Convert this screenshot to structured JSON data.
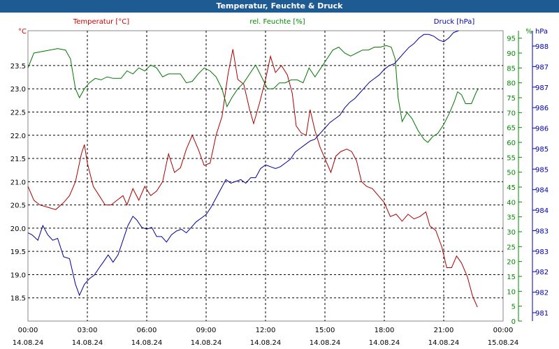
{
  "window_title": "Temperatur, Feuchte & Druck",
  "chart_data": {
    "type": "line",
    "title": "Temperatur, Feuchte & Druck",
    "x_axis": {
      "labels": [
        {
          "time": "00:00",
          "date": "14.08.24"
        },
        {
          "time": "03:00",
          "date": "14.08.24"
        },
        {
          "time": "06:00",
          "date": "14.08.24"
        },
        {
          "time": "09:00",
          "date": "14.08.24"
        },
        {
          "time": "12:00",
          "date": "14.08.24"
        },
        {
          "time": "15:00",
          "date": "14.08.24"
        },
        {
          "time": "18:00",
          "date": "14.08.24"
        },
        {
          "time": "21:00",
          "date": "14.08.24"
        },
        {
          "time": "00:00",
          "date": "15.08.24"
        }
      ],
      "range_hours": [
        0,
        24
      ]
    },
    "grid": true,
    "axes": {
      "temperature": {
        "unit": "°C",
        "ylim": [
          18.0,
          24.25
        ],
        "ticks": [
          "18.5",
          "19.0",
          "19.5",
          "20.0",
          "20.5",
          "21.0",
          "21.5",
          "22.0",
          "22.5",
          "23.0",
          "23.5"
        ],
        "color": "#cc0000"
      },
      "humidity": {
        "unit": "%",
        "ylim": [
          0,
          97.5
        ],
        "ticks": [
          "0",
          "5",
          "10",
          "15",
          "20",
          "25",
          "30",
          "35",
          "40",
          "45",
          "50",
          "55",
          "60",
          "65",
          "70",
          "75",
          "80",
          "85",
          "90",
          "95"
        ],
        "color": "#008800"
      },
      "pressure": {
        "unit": "hPa",
        "ylim": [
          980.6,
          988.5
        ],
        "ticks": [
          "981",
          "982",
          "982",
          "983",
          "983",
          "984",
          "984",
          "985",
          "985",
          "986",
          "986",
          "987",
          "987",
          "988"
        ],
        "color": "#0000aa"
      }
    },
    "series": [
      {
        "name": "Temperatur [°C]",
        "axis": "temperature",
        "color": "#aa0000",
        "points": [
          [
            0,
            20.9
          ],
          [
            0.3,
            20.6
          ],
          [
            0.6,
            20.5
          ],
          [
            1.0,
            20.45
          ],
          [
            1.4,
            20.4
          ],
          [
            1.8,
            20.55
          ],
          [
            2.1,
            20.7
          ],
          [
            2.4,
            21.0
          ],
          [
            2.7,
            21.6
          ],
          [
            2.85,
            21.8
          ],
          [
            3.0,
            21.4
          ],
          [
            3.3,
            20.9
          ],
          [
            3.6,
            20.7
          ],
          [
            3.9,
            20.5
          ],
          [
            4.2,
            20.5
          ],
          [
            4.5,
            20.6
          ],
          [
            4.8,
            20.7
          ],
          [
            5.0,
            20.5
          ],
          [
            5.3,
            20.85
          ],
          [
            5.6,
            20.6
          ],
          [
            5.9,
            20.9
          ],
          [
            6.2,
            20.7
          ],
          [
            6.5,
            20.8
          ],
          [
            6.8,
            21.0
          ],
          [
            7.1,
            21.6
          ],
          [
            7.4,
            21.2
          ],
          [
            7.7,
            21.3
          ],
          [
            8.0,
            21.7
          ],
          [
            8.3,
            22.0
          ],
          [
            8.6,
            21.7
          ],
          [
            8.9,
            21.35
          ],
          [
            9.2,
            21.4
          ],
          [
            9.5,
            22.0
          ],
          [
            9.8,
            22.4
          ],
          [
            10.1,
            23.3
          ],
          [
            10.35,
            23.85
          ],
          [
            10.6,
            23.2
          ],
          [
            10.9,
            23.1
          ],
          [
            11.2,
            22.55
          ],
          [
            11.4,
            22.25
          ],
          [
            11.7,
            22.7
          ],
          [
            12.0,
            23.2
          ],
          [
            12.25,
            23.7
          ],
          [
            12.5,
            23.35
          ],
          [
            12.8,
            23.5
          ],
          [
            13.1,
            23.3
          ],
          [
            13.35,
            22.9
          ],
          [
            13.55,
            22.2
          ],
          [
            13.8,
            22.05
          ],
          [
            14.05,
            22.0
          ],
          [
            14.25,
            22.55
          ],
          [
            14.5,
            22.1
          ],
          [
            14.75,
            21.75
          ],
          [
            15.05,
            21.45
          ],
          [
            15.3,
            21.2
          ],
          [
            15.55,
            21.55
          ],
          [
            15.8,
            21.65
          ],
          [
            16.1,
            21.7
          ],
          [
            16.35,
            21.65
          ],
          [
            16.6,
            21.45
          ],
          [
            16.85,
            21.0
          ],
          [
            17.1,
            20.9
          ],
          [
            17.4,
            20.85
          ],
          [
            17.7,
            20.7
          ],
          [
            18.0,
            20.55
          ],
          [
            18.3,
            20.25
          ],
          [
            18.6,
            20.3
          ],
          [
            18.9,
            20.15
          ],
          [
            19.2,
            20.3
          ],
          [
            19.5,
            20.2
          ],
          [
            19.8,
            20.25
          ],
          [
            20.1,
            20.35
          ],
          [
            20.3,
            20.05
          ],
          [
            20.6,
            19.95
          ],
          [
            20.9,
            19.6
          ],
          [
            21.15,
            19.15
          ],
          [
            21.4,
            19.15
          ],
          [
            21.65,
            19.4
          ],
          [
            21.9,
            19.25
          ],
          [
            22.2,
            18.95
          ],
          [
            22.45,
            18.55
          ],
          [
            22.7,
            18.3
          ]
        ]
      },
      {
        "name": "rel. Feuchte [%]",
        "axis": "humidity",
        "color": "#007700",
        "points": [
          [
            0,
            85
          ],
          [
            0.3,
            90
          ],
          [
            0.7,
            90.5
          ],
          [
            1.1,
            91
          ],
          [
            1.5,
            91.5
          ],
          [
            1.9,
            91
          ],
          [
            2.15,
            88
          ],
          [
            2.4,
            78
          ],
          [
            2.6,
            75
          ],
          [
            2.85,
            78
          ],
          [
            3.1,
            80
          ],
          [
            3.4,
            81.5
          ],
          [
            3.7,
            81
          ],
          [
            4.0,
            82
          ],
          [
            4.3,
            81.5
          ],
          [
            4.7,
            81.5
          ],
          [
            5.0,
            84
          ],
          [
            5.3,
            83
          ],
          [
            5.6,
            85
          ],
          [
            5.9,
            84
          ],
          [
            6.2,
            86
          ],
          [
            6.5,
            85
          ],
          [
            6.8,
            82
          ],
          [
            7.1,
            83
          ],
          [
            7.4,
            83
          ],
          [
            7.7,
            83
          ],
          [
            8.0,
            80
          ],
          [
            8.3,
            80.5
          ],
          [
            8.6,
            83
          ],
          [
            8.9,
            85
          ],
          [
            9.2,
            84
          ],
          [
            9.5,
            82
          ],
          [
            9.8,
            78
          ],
          [
            10.05,
            72
          ],
          [
            10.3,
            75
          ],
          [
            10.6,
            78
          ],
          [
            10.9,
            80
          ],
          [
            11.2,
            83
          ],
          [
            11.5,
            86
          ],
          [
            11.8,
            82
          ],
          [
            12.1,
            78
          ],
          [
            12.4,
            78
          ],
          [
            12.7,
            80
          ],
          [
            13.0,
            80
          ],
          [
            13.3,
            81
          ],
          [
            13.6,
            81
          ],
          [
            13.9,
            80
          ],
          [
            14.2,
            85
          ],
          [
            14.5,
            82
          ],
          [
            14.8,
            85
          ],
          [
            15.1,
            88
          ],
          [
            15.4,
            91
          ],
          [
            15.7,
            92
          ],
          [
            16.0,
            90
          ],
          [
            16.3,
            89
          ],
          [
            16.6,
            90
          ],
          [
            16.9,
            91
          ],
          [
            17.2,
            91
          ],
          [
            17.5,
            92
          ],
          [
            17.8,
            92
          ],
          [
            18.1,
            92.5
          ],
          [
            18.35,
            92
          ],
          [
            18.55,
            88
          ],
          [
            18.7,
            75
          ],
          [
            18.9,
            67
          ],
          [
            19.15,
            70
          ],
          [
            19.4,
            68
          ],
          [
            19.7,
            64
          ],
          [
            20.0,
            61
          ],
          [
            20.2,
            60
          ],
          [
            20.45,
            62
          ],
          [
            20.7,
            63
          ],
          [
            21.0,
            66
          ],
          [
            21.3,
            70
          ],
          [
            21.55,
            74
          ],
          [
            21.7,
            77
          ],
          [
            21.9,
            76
          ],
          [
            22.1,
            73
          ],
          [
            22.4,
            73
          ],
          [
            22.65,
            77
          ],
          [
            22.75,
            78
          ]
        ]
      },
      {
        "name": "Druck [hPa]",
        "axis": "pressure",
        "color": "#000099",
        "points": [
          [
            0,
            983.0
          ],
          [
            0.2,
            982.95
          ],
          [
            0.5,
            982.8
          ],
          [
            0.75,
            983.2
          ],
          [
            1.0,
            982.95
          ],
          [
            1.25,
            982.8
          ],
          [
            1.5,
            982.85
          ],
          [
            1.8,
            982.35
          ],
          [
            2.1,
            982.3
          ],
          [
            2.4,
            981.6
          ],
          [
            2.6,
            981.3
          ],
          [
            2.85,
            981.6
          ],
          [
            3.1,
            981.75
          ],
          [
            3.35,
            981.85
          ],
          [
            3.6,
            982.05
          ],
          [
            3.8,
            982.2
          ],
          [
            4.05,
            982.4
          ],
          [
            4.3,
            982.2
          ],
          [
            4.55,
            982.4
          ],
          [
            4.8,
            982.8
          ],
          [
            5.05,
            983.2
          ],
          [
            5.3,
            983.45
          ],
          [
            5.5,
            983.35
          ],
          [
            5.75,
            983.15
          ],
          [
            6.0,
            983.1
          ],
          [
            6.25,
            983.15
          ],
          [
            6.5,
            982.9
          ],
          [
            6.75,
            982.9
          ],
          [
            7.0,
            982.75
          ],
          [
            7.25,
            982.95
          ],
          [
            7.5,
            983.05
          ],
          [
            7.75,
            983.1
          ],
          [
            8.0,
            983.0
          ],
          [
            8.25,
            983.15
          ],
          [
            8.5,
            983.3
          ],
          [
            8.75,
            983.4
          ],
          [
            9.0,
            983.5
          ],
          [
            9.25,
            983.7
          ],
          [
            9.5,
            983.95
          ],
          [
            9.75,
            984.2
          ],
          [
            10.0,
            984.45
          ],
          [
            10.25,
            984.35
          ],
          [
            10.5,
            984.4
          ],
          [
            10.75,
            984.45
          ],
          [
            11.0,
            984.35
          ],
          [
            11.25,
            984.5
          ],
          [
            11.5,
            984.5
          ],
          [
            11.75,
            984.75
          ],
          [
            12.0,
            984.85
          ],
          [
            12.25,
            984.8
          ],
          [
            12.5,
            984.75
          ],
          [
            12.75,
            984.8
          ],
          [
            13.0,
            984.9
          ],
          [
            13.25,
            985.0
          ],
          [
            13.5,
            985.2
          ],
          [
            13.75,
            985.3
          ],
          [
            14.0,
            985.4
          ],
          [
            14.25,
            985.5
          ],
          [
            14.5,
            985.55
          ],
          [
            14.75,
            985.7
          ],
          [
            15.0,
            985.85
          ],
          [
            15.25,
            986.0
          ],
          [
            15.5,
            986.1
          ],
          [
            15.75,
            986.2
          ],
          [
            16.0,
            986.4
          ],
          [
            16.25,
            986.55
          ],
          [
            16.5,
            986.65
          ],
          [
            16.75,
            986.8
          ],
          [
            17.0,
            986.95
          ],
          [
            17.25,
            987.1
          ],
          [
            17.5,
            987.2
          ],
          [
            17.75,
            987.3
          ],
          [
            18.0,
            987.45
          ],
          [
            18.25,
            987.55
          ],
          [
            18.5,
            987.6
          ],
          [
            18.75,
            987.75
          ],
          [
            19.0,
            987.9
          ],
          [
            19.25,
            988.05
          ],
          [
            19.5,
            988.15
          ],
          [
            19.75,
            988.3
          ],
          [
            20.0,
            988.4
          ],
          [
            20.25,
            988.4
          ],
          [
            20.5,
            988.35
          ],
          [
            20.75,
            988.25
          ],
          [
            21.0,
            988.2
          ],
          [
            21.25,
            988.3
          ],
          [
            21.5,
            988.45
          ],
          [
            21.75,
            988.5
          ]
        ]
      }
    ]
  }
}
